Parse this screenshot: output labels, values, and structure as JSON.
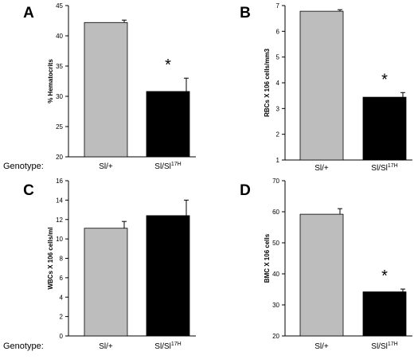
{
  "genotype_label": "Genotype:",
  "chart_data": [
    {
      "type": "bar",
      "panel": "A",
      "ylabel": "% Hematocrits",
      "categories": [
        "Sl/+",
        "Sl/Sl17H"
      ],
      "category_labels": [
        {
          "base": "Sl/+",
          "sup": ""
        },
        {
          "base": "Sl/Sl",
          "sup": "17H"
        }
      ],
      "values": [
        42.2,
        30.8
      ],
      "errors": [
        0.4,
        2.2
      ],
      "ylim": [
        20,
        45
      ],
      "yticks": [
        20,
        25,
        30,
        35,
        40,
        45
      ],
      "bar_colors": [
        "#bdbdbd",
        "#000000"
      ],
      "annotations": [
        {
          "category": "Sl/Sl17H",
          "text": "*"
        }
      ]
    },
    {
      "type": "bar",
      "panel": "B",
      "ylabel": "RBCs X 106 cells/mm3",
      "categories": [
        "Sl/+",
        "Sl/Sl17H"
      ],
      "category_labels": [
        {
          "base": "Sl/+",
          "sup": ""
        },
        {
          "base": "Sl/Sl",
          "sup": "17H"
        }
      ],
      "values": [
        6.78,
        3.44
      ],
      "errors": [
        0.06,
        0.18
      ],
      "ylim": [
        1,
        7
      ],
      "yticks": [
        1,
        2,
        3,
        4,
        5,
        6,
        7
      ],
      "bar_colors": [
        "#bdbdbd",
        "#000000"
      ],
      "annotations": [
        {
          "category": "Sl/Sl17H",
          "text": "*"
        }
      ]
    },
    {
      "type": "bar",
      "panel": "C",
      "ylabel": "WBCs X 106 cells/ml",
      "categories": [
        "Sl/+",
        "Sl/Sl17H"
      ],
      "category_labels": [
        {
          "base": "Sl/+",
          "sup": ""
        },
        {
          "base": "Sl/Sl",
          "sup": "17H"
        }
      ],
      "values": [
        11.1,
        12.4
      ],
      "errors": [
        0.7,
        1.6
      ],
      "ylim": [
        0,
        16
      ],
      "yticks": [
        0,
        2,
        4,
        6,
        8,
        10,
        12,
        14,
        16
      ],
      "bar_colors": [
        "#bdbdbd",
        "#000000"
      ],
      "annotations": []
    },
    {
      "type": "bar",
      "panel": "D",
      "ylabel": "BMC X 106 cells",
      "categories": [
        "Sl/+",
        "Sl/Sl17H"
      ],
      "category_labels": [
        {
          "base": "Sl/+",
          "sup": ""
        },
        {
          "base": "Sl/Sl",
          "sup": "17H"
        }
      ],
      "values": [
        59.2,
        34.2
      ],
      "errors": [
        1.8,
        0.9
      ],
      "ylim": [
        20,
        70
      ],
      "yticks": [
        20,
        30,
        40,
        50,
        60,
        70
      ],
      "bar_colors": [
        "#bdbdbd",
        "#000000"
      ],
      "annotations": [
        {
          "category": "Sl/Sl17H",
          "text": "*"
        }
      ]
    }
  ]
}
